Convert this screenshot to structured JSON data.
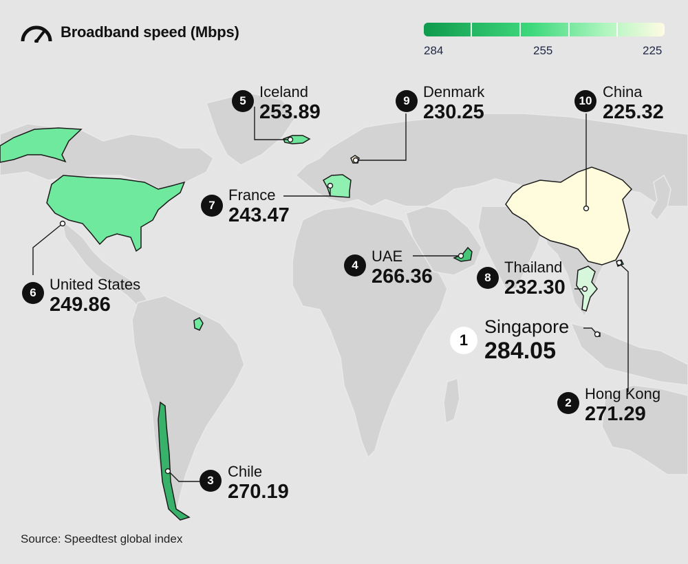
{
  "title": "Broadband speed (Mbps)",
  "source": "Source: Speedtest global index",
  "legend": {
    "labels": [
      "284",
      "255",
      "225"
    ],
    "colors": {
      "high": "#0f9a4d",
      "mid": "#3fd97d",
      "low": "#fffbe3"
    }
  },
  "icons": {
    "title": "speedometer-icon"
  },
  "colors": {
    "land": "#d3d3d3",
    "border": "#e9e9e9",
    "ocean": "#e5e5e5",
    "chile": "#38b26a",
    "uae": "#47c67a",
    "hongkong": "#41c077",
    "iceland": "#6fe49b",
    "usa": "#6ee99d",
    "france": "#8ff0b2",
    "thailand": "#d6f7dc",
    "denmark": "#fff7d6",
    "china": "#fffbdd"
  },
  "countries": [
    {
      "rank": "1",
      "name": "Singapore",
      "value": "284.05"
    },
    {
      "rank": "2",
      "name": "Hong Kong",
      "value": "271.29"
    },
    {
      "rank": "3",
      "name": "Chile",
      "value": "270.19"
    },
    {
      "rank": "4",
      "name": "UAE",
      "value": "266.36"
    },
    {
      "rank": "5",
      "name": "Iceland",
      "value": "253.89"
    },
    {
      "rank": "6",
      "name": "United States",
      "value": "249.86"
    },
    {
      "rank": "7",
      "name": "France",
      "value": "243.47"
    },
    {
      "rank": "8",
      "name": "Thailand",
      "value": "232.30"
    },
    {
      "rank": "9",
      "name": "Denmark",
      "value": "230.25"
    },
    {
      "rank": "10",
      "name": "China",
      "value": "225.32"
    }
  ]
}
